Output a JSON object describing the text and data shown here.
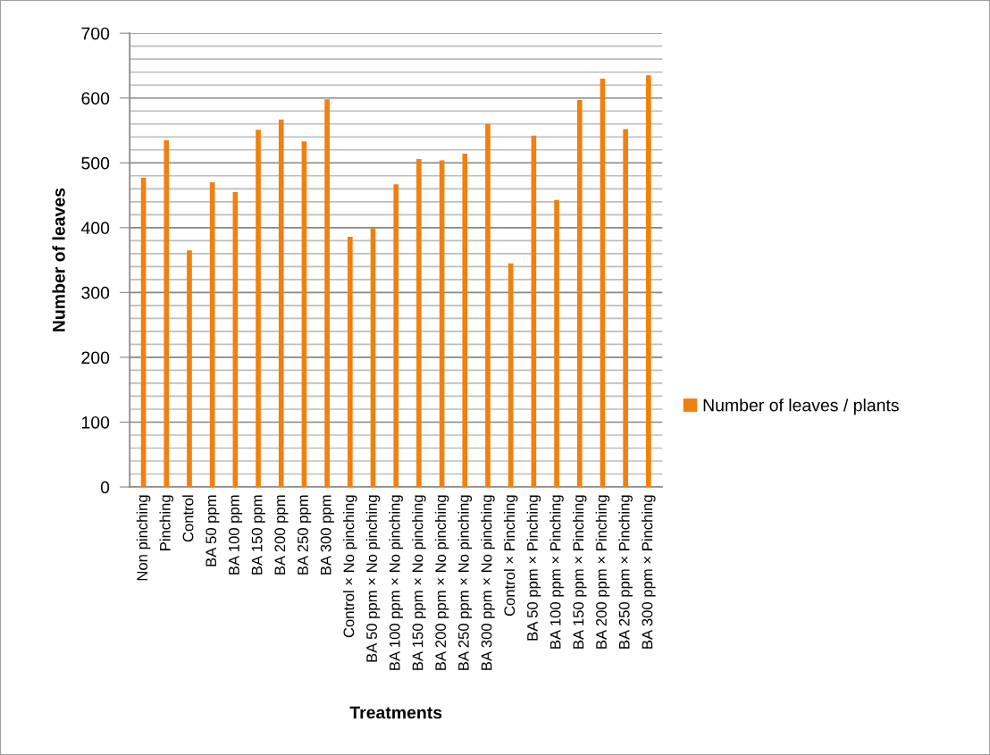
{
  "chart_data": {
    "type": "bar",
    "xlabel": "Treatments",
    "ylabel": "Number of leaves",
    "categories": [
      "Non pinching",
      "Pinching",
      "Control",
      "BA 50 ppm",
      "BA 100 ppm",
      "BA 150 ppm",
      "BA 200 ppm",
      "BA 250 ppm",
      "BA 300 ppm",
      "Control × No pinching",
      "BA 50 ppm × No pinching",
      "BA 100 ppm × No pinching",
      "BA 150 ppm × No pinching",
      "BA 200 ppm × No pinching",
      "BA 250 ppm × No pinching",
      "BA 300 ppm × No pinching",
      "Control × Pinching",
      "BA 50 ppm × Pinching",
      "BA 100 ppm × Pinching",
      "BA 150 ppm × Pinching",
      "BA 200 ppm × Pinching",
      "BA 250 ppm × Pinching",
      "BA 300 ppm × Pinching"
    ],
    "series": [
      {
        "name": "Number of leaves / plants",
        "color": "#f08010",
        "values": [
          477,
          535,
          365,
          470,
          455,
          551,
          567,
          533,
          598,
          386,
          399,
          467,
          506,
          504,
          514,
          560,
          345,
          542,
          443,
          597,
          630,
          552,
          635
        ]
      }
    ],
    "ylim": [
      0,
      700
    ],
    "yticks": [
      0,
      {
        "value": 20,
        "label": null
      },
      {
        "value": 40,
        "label": null
      },
      {
        "value": 60,
        "label": null
      },
      {
        "value": 80,
        "label": null
      },
      100,
      {
        "value": 120,
        "label": null
      },
      {
        "value": 140,
        "label": null
      },
      {
        "value": 160,
        "label": null
      },
      {
        "value": 180,
        "label": null
      },
      200,
      {
        "value": 220,
        "label": null
      },
      {
        "value": 240,
        "label": null
      },
      {
        "value": 260,
        "label": null
      },
      {
        "value": 280,
        "label": null
      },
      300,
      {
        "value": 320,
        "label": null
      },
      {
        "value": 340,
        "label": null
      },
      {
        "value": 360,
        "label": null
      },
      {
        "value": 380,
        "label": null
      },
      400,
      {
        "value": 420,
        "label": null
      },
      {
        "value": 440,
        "label": null
      },
      {
        "value": 460,
        "label": null
      },
      {
        "value": 480,
        "label": null
      },
      500,
      {
        "value": 520,
        "label": null
      },
      {
        "value": 540,
        "label": null
      },
      {
        "value": 560,
        "label": null
      },
      {
        "value": 580,
        "label": null
      },
      600,
      {
        "value": 620,
        "label": null
      },
      {
        "value": 640,
        "label": null
      },
      {
        "value": 660,
        "label": null
      },
      {
        "value": 680,
        "label": null
      },
      700
    ],
    "grid": "y",
    "legend": "right"
  }
}
